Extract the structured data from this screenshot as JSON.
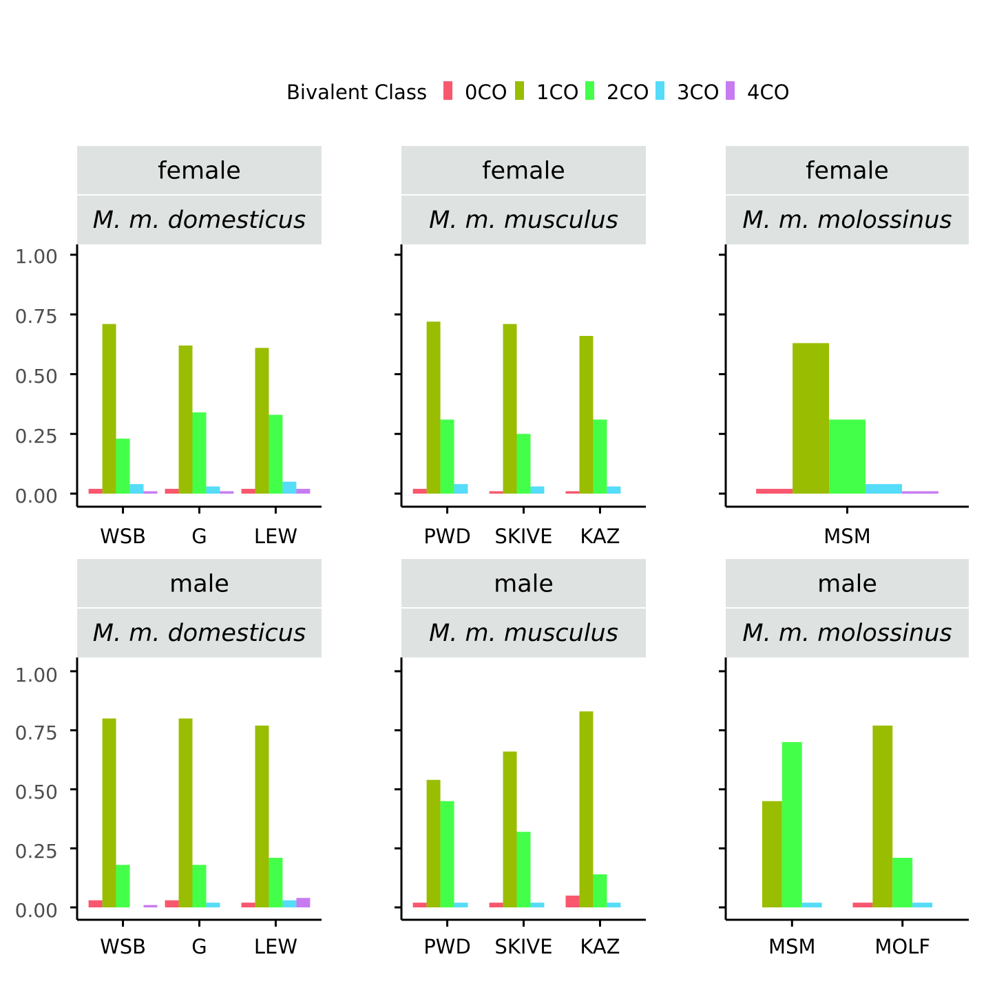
{
  "legend": {
    "title": "Bivalent Class",
    "items": [
      {
        "label": "0CO",
        "color": "#f8576e"
      },
      {
        "label": "1CO",
        "color": "#99bd00"
      },
      {
        "label": "2CO",
        "color": "#44ff4a"
      },
      {
        "label": "3CO",
        "color": "#55dcf8"
      },
      {
        "label": "4CO",
        "color": "#c77bf0"
      }
    ]
  },
  "y_ticks": [
    "1.00",
    "0.75",
    "0.50",
    "0.25",
    "0.00"
  ],
  "chart_data": [
    {
      "type": "bar",
      "sex": "female",
      "subspecies": "M. m. domesticus",
      "ylim": [
        0,
        1
      ],
      "categories": [
        "WSB",
        "G",
        "LEW"
      ],
      "series": [
        {
          "name": "0CO",
          "values": [
            0.02,
            0.02,
            0.02
          ]
        },
        {
          "name": "1CO",
          "values": [
            0.71,
            0.62,
            0.61
          ]
        },
        {
          "name": "2CO",
          "values": [
            0.23,
            0.34,
            0.33
          ]
        },
        {
          "name": "3CO",
          "values": [
            0.04,
            0.03,
            0.05
          ]
        },
        {
          "name": "4CO",
          "values": [
            0.01,
            0.01,
            0.02
          ]
        }
      ]
    },
    {
      "type": "bar",
      "sex": "female",
      "subspecies": "M. m. musculus",
      "ylim": [
        0,
        1
      ],
      "categories": [
        "PWD",
        "SKIVE",
        "KAZ"
      ],
      "series": [
        {
          "name": "0CO",
          "values": [
            0.02,
            0.01,
            0.01
          ]
        },
        {
          "name": "1CO",
          "values": [
            0.72,
            0.71,
            0.66
          ]
        },
        {
          "name": "2CO",
          "values": [
            0.31,
            0.25,
            0.31
          ]
        },
        {
          "name": "3CO",
          "values": [
            0.04,
            0.03,
            0.03
          ]
        },
        {
          "name": "4CO",
          "values": [
            null,
            null,
            null
          ]
        }
      ]
    },
    {
      "type": "bar",
      "sex": "female",
      "subspecies": "M. m. molossinus",
      "ylim": [
        0,
        1
      ],
      "categories": [
        "MSM"
      ],
      "series": [
        {
          "name": "0CO",
          "values": [
            0.02
          ]
        },
        {
          "name": "1CO",
          "values": [
            0.63
          ]
        },
        {
          "name": "2CO",
          "values": [
            0.31
          ]
        },
        {
          "name": "3CO",
          "values": [
            0.04
          ]
        },
        {
          "name": "4CO",
          "values": [
            0.01
          ]
        }
      ]
    },
    {
      "type": "bar",
      "sex": "male",
      "subspecies": "M. m. domesticus",
      "ylim": [
        0,
        1
      ],
      "categories": [
        "WSB",
        "G",
        "LEW"
      ],
      "series": [
        {
          "name": "0CO",
          "values": [
            0.03,
            0.03,
            0.02
          ]
        },
        {
          "name": "1CO",
          "values": [
            0.8,
            0.8,
            0.77
          ]
        },
        {
          "name": "2CO",
          "values": [
            0.18,
            0.18,
            0.21
          ]
        },
        {
          "name": "3CO",
          "values": [
            null,
            0.02,
            0.03
          ]
        },
        {
          "name": "4CO",
          "values": [
            0.01,
            null,
            0.04
          ]
        }
      ]
    },
    {
      "type": "bar",
      "sex": "male",
      "subspecies": "M. m. musculus",
      "ylim": [
        0,
        1
      ],
      "categories": [
        "PWD",
        "SKIVE",
        "KAZ"
      ],
      "series": [
        {
          "name": "0CO",
          "values": [
            0.02,
            0.02,
            0.05
          ]
        },
        {
          "name": "1CO",
          "values": [
            0.54,
            0.66,
            0.83
          ]
        },
        {
          "name": "2CO",
          "values": [
            0.45,
            0.32,
            0.14
          ]
        },
        {
          "name": "3CO",
          "values": [
            0.02,
            0.02,
            0.02
          ]
        },
        {
          "name": "4CO",
          "values": [
            null,
            null,
            null
          ]
        }
      ]
    },
    {
      "type": "bar",
      "sex": "male",
      "subspecies": "M. m. molossinus",
      "ylim": [
        0,
        1
      ],
      "categories": [
        "MSM",
        "MOLF"
      ],
      "series": [
        {
          "name": "0CO",
          "values": [
            null,
            0.02
          ]
        },
        {
          "name": "1CO",
          "values": [
            0.45,
            0.77
          ]
        },
        {
          "name": "2CO",
          "values": [
            0.7,
            0.21
          ]
        },
        {
          "name": "3CO",
          "values": [
            0.02,
            0.02
          ]
        },
        {
          "name": "4CO",
          "values": [
            null,
            null
          ]
        }
      ]
    }
  ]
}
